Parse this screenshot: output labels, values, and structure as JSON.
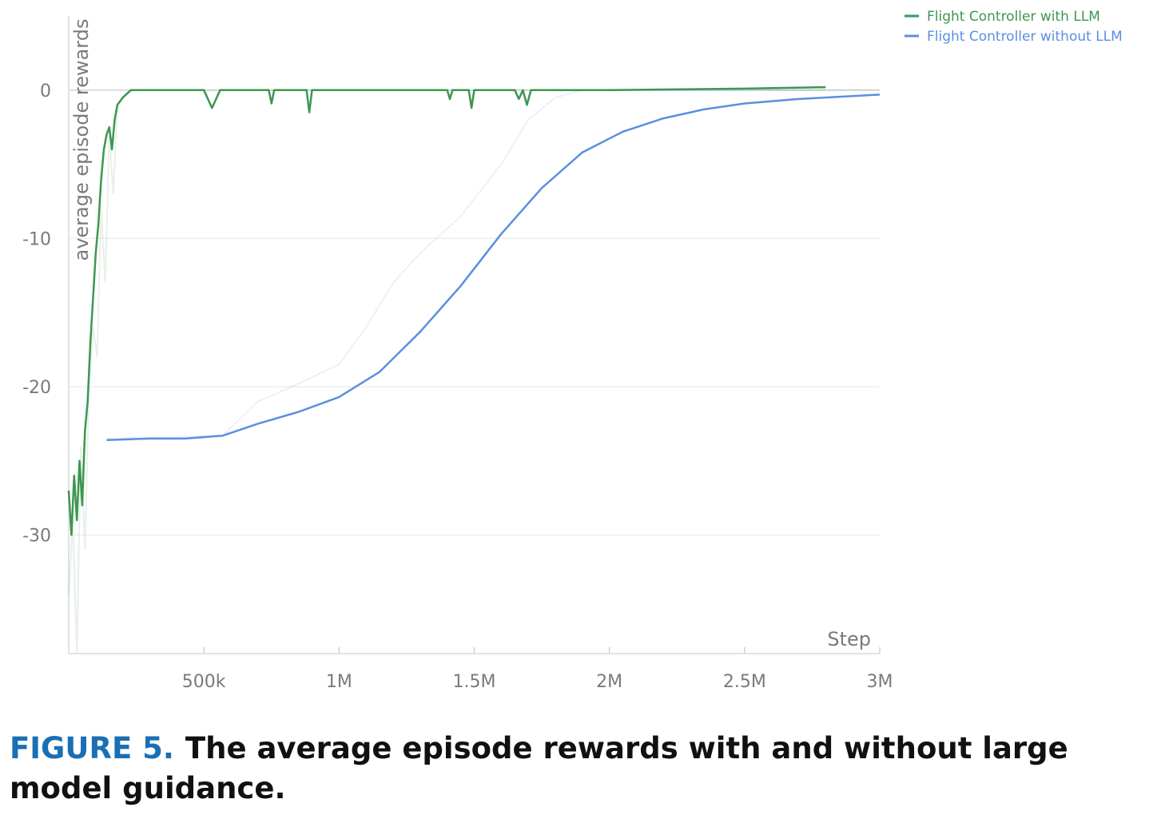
{
  "chart_data": {
    "type": "line",
    "title": "",
    "xlabel": "Step",
    "ylabel": "average episode rewards",
    "xlim": [
      0,
      3000000
    ],
    "ylim": [
      -38,
      5
    ],
    "x_ticks": [
      {
        "value": 500000,
        "label": "500k"
      },
      {
        "value": 1000000,
        "label": "1M"
      },
      {
        "value": 1500000,
        "label": "1.5M"
      },
      {
        "value": 2000000,
        "label": "2M"
      },
      {
        "value": 2500000,
        "label": "2.5M"
      },
      {
        "value": 3000000,
        "label": "3M"
      }
    ],
    "y_ticks": [
      {
        "value": 0,
        "label": "0"
      },
      {
        "value": -10,
        "label": "-10"
      },
      {
        "value": -20,
        "label": "-20"
      },
      {
        "value": -30,
        "label": "-30"
      }
    ],
    "grid": true,
    "legend_position": "top-right",
    "series": [
      {
        "name": "Flight Controller with LLM",
        "color": "#3e9651",
        "smoothed": {
          "x": [
            0,
            10000,
            20000,
            30000,
            40000,
            50000,
            60000,
            70000,
            80000,
            90000,
            100000,
            110000,
            120000,
            130000,
            140000,
            150000,
            160000,
            170000,
            180000,
            200000,
            230000,
            500000,
            530000,
            560000,
            740000,
            750000,
            760000,
            880000,
            890000,
            900000,
            1400000,
            1410000,
            1420000,
            1480000,
            1490000,
            1500000,
            1650000,
            1665000,
            1680000,
            1695000,
            1710000,
            1725000,
            2000000,
            2500000,
            2800000
          ],
          "y": [
            -27,
            -30,
            -26,
            -29,
            -25,
            -28,
            -23,
            -21,
            -17,
            -14,
            -11,
            -9,
            -6,
            -4,
            -3,
            -2.5,
            -4,
            -2,
            -1,
            -0.5,
            0,
            0,
            -1.2,
            0,
            0,
            -0.9,
            0,
            0,
            -1.5,
            0,
            0,
            -0.6,
            0,
            0,
            -1.2,
            0,
            0,
            -0.6,
            0,
            -1,
            0,
            0,
            0,
            0.1,
            0.2
          ]
        },
        "raw": {
          "x": [
            0,
            15000,
            30000,
            45000,
            60000,
            75000,
            90000,
            105000,
            120000,
            135000,
            150000,
            165000,
            180000,
            200000,
            230000,
            2800000
          ],
          "y": [
            -34,
            -29,
            -38,
            -24,
            -31,
            -20,
            -16,
            -18,
            -8,
            -13,
            -3,
            -7,
            -1,
            -0.5,
            0,
            0
          ]
        }
      },
      {
        "name": "Flight Controller without LLM",
        "color": "#5b8fe0",
        "smoothed": {
          "x": [
            140000,
            300000,
            430000,
            570000,
            700000,
            850000,
            1000000,
            1150000,
            1300000,
            1450000,
            1600000,
            1750000,
            1900000,
            2050000,
            2200000,
            2350000,
            2500000,
            2700000,
            3000000
          ],
          "y": [
            -23.6,
            -23.5,
            -23.5,
            -23.3,
            -22.5,
            -21.7,
            -20.7,
            -19,
            -16.3,
            -13.2,
            -9.7,
            -6.6,
            -4.2,
            -2.8,
            -1.9,
            -1.3,
            -0.9,
            -0.6,
            -0.3
          ]
        },
        "raw": {
          "x": [
            140000,
            570000,
            700000,
            850000,
            1000000,
            1100000,
            1200000,
            1300000,
            1450000,
            1600000,
            1700000,
            1800000,
            1900000,
            2200000,
            3000000
          ],
          "y": [
            -23.5,
            -23.3,
            -21,
            -19.8,
            -18.5,
            -16,
            -13,
            -11,
            -8.5,
            -5,
            -2,
            -0.5,
            0,
            0,
            0
          ]
        }
      }
    ]
  },
  "caption": {
    "label": "FIGURE 5.",
    "text": "The average episode rewards with and without large model guidance."
  }
}
